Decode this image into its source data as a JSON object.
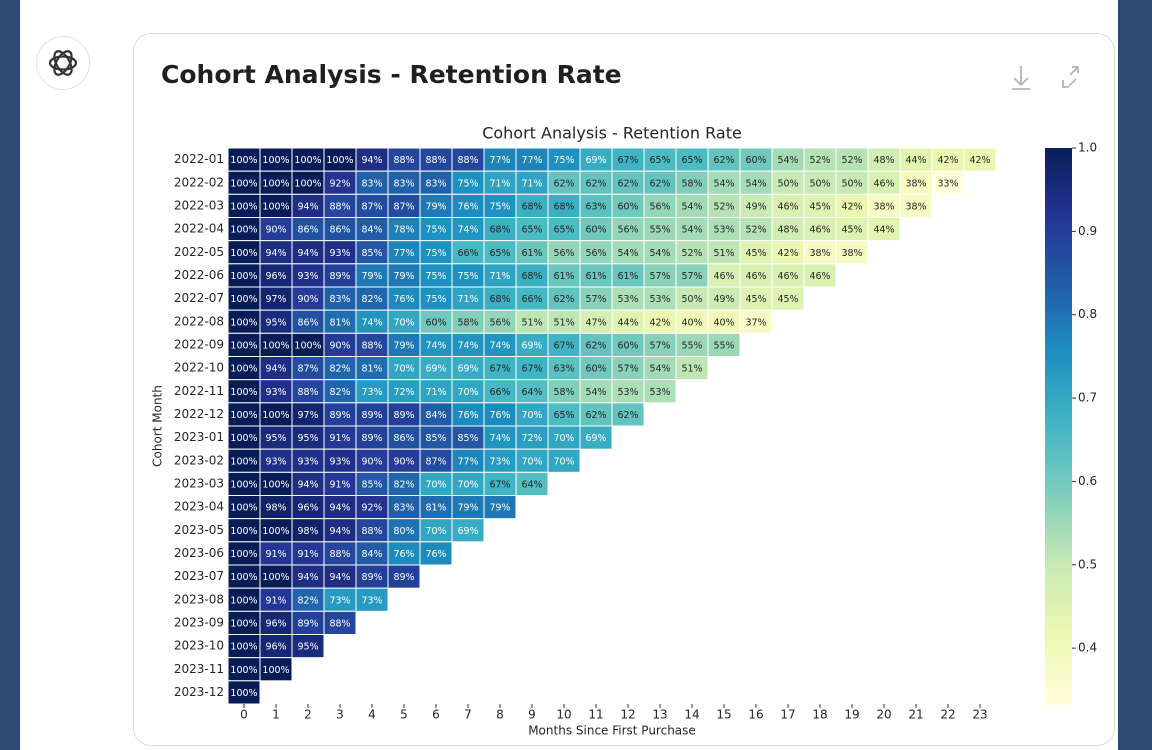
{
  "card_title": "Cohort Analysis - Retention Rate",
  "chart_data": {
    "type": "heatmap",
    "title": "Cohort Analysis - Retention Rate",
    "xlabel": "Months Since First Purchase",
    "ylabel": "Cohort Month",
    "x": [
      0,
      1,
      2,
      3,
      4,
      5,
      6,
      7,
      8,
      9,
      10,
      11,
      12,
      13,
      14,
      15,
      16,
      17,
      18,
      19,
      20,
      21,
      22,
      23
    ],
    "y": [
      "2022-01",
      "2022-02",
      "2022-03",
      "2022-04",
      "2022-05",
      "2022-06",
      "2022-07",
      "2022-08",
      "2022-09",
      "2022-10",
      "2022-11",
      "2022-12",
      "2023-01",
      "2023-02",
      "2023-03",
      "2023-04",
      "2023-05",
      "2023-06",
      "2023-07",
      "2023-08",
      "2023-09",
      "2023-10",
      "2023-11",
      "2023-12"
    ],
    "colormap": "YlGnBu",
    "clim": [
      0.333,
      1.0
    ],
    "cticks": [
      0.4,
      0.5,
      0.6,
      0.7,
      0.8,
      0.9,
      {
        "value": 1,
        "label": "1.0"
      }
    ],
    "values": [
      [
        1,
        1,
        1,
        1,
        0.94,
        0.88,
        0.88,
        0.88,
        0.77,
        0.77,
        0.75,
        0.69,
        0.67,
        0.65,
        0.65,
        0.62,
        0.6,
        0.54,
        0.52,
        0.52,
        0.48,
        0.44,
        0.42,
        0.42
      ],
      [
        1,
        1,
        1,
        0.92,
        0.83,
        0.83,
        0.83,
        0.75,
        0.71,
        0.71,
        0.62,
        0.62,
        0.62,
        0.62,
        0.58,
        0.54,
        0.54,
        0.5,
        0.5,
        0.5,
        0.46,
        0.38,
        0.33,
        null
      ],
      [
        1,
        1,
        0.94,
        0.88,
        0.87,
        0.87,
        0.79,
        0.76,
        0.75,
        0.68,
        0.68,
        0.63,
        0.6,
        0.56,
        0.54,
        0.52,
        0.49,
        0.46,
        0.45,
        0.42,
        0.38,
        0.38,
        null,
        null
      ],
      [
        1,
        0.9,
        0.86,
        0.86,
        0.84,
        0.78,
        0.75,
        0.74,
        0.68,
        0.65,
        0.65,
        0.6,
        0.56,
        0.55,
        0.54,
        0.53,
        0.52,
        0.48,
        0.46,
        0.45,
        0.44,
        null,
        null,
        null
      ],
      [
        1,
        0.94,
        0.94,
        0.93,
        0.85,
        0.77,
        0.75,
        0.66,
        0.65,
        0.61,
        0.56,
        0.56,
        0.54,
        0.54,
        0.52,
        0.51,
        0.45,
        0.42,
        0.38,
        0.38,
        null,
        null,
        null,
        null
      ],
      [
        1,
        0.96,
        0.93,
        0.89,
        0.79,
        0.79,
        0.75,
        0.75,
        0.71,
        0.68,
        0.61,
        0.61,
        0.61,
        0.57,
        0.57,
        0.46,
        0.46,
        0.46,
        0.46,
        null,
        null,
        null,
        null,
        null
      ],
      [
        1,
        0.97,
        0.9,
        0.83,
        0.82,
        0.76,
        0.75,
        0.71,
        0.68,
        0.66,
        0.62,
        0.57,
        0.53,
        0.53,
        0.5,
        0.49,
        0.45,
        0.45,
        null,
        null,
        null,
        null,
        null,
        null
      ],
      [
        1,
        0.95,
        0.86,
        0.81,
        0.74,
        0.7,
        0.6,
        0.58,
        0.56,
        0.51,
        0.51,
        0.47,
        0.44,
        0.42,
        0.4,
        0.4,
        0.37,
        null,
        null,
        null,
        null,
        null,
        null,
        null
      ],
      [
        1,
        1,
        1,
        0.9,
        0.88,
        0.79,
        0.74,
        0.74,
        0.74,
        0.69,
        0.67,
        0.62,
        0.6,
        0.57,
        0.55,
        0.55,
        null,
        null,
        null,
        null,
        null,
        null,
        null,
        null
      ],
      [
        1,
        0.94,
        0.87,
        0.82,
        0.81,
        0.7,
        0.69,
        0.69,
        0.67,
        0.67,
        0.63,
        0.6,
        0.57,
        0.54,
        0.51,
        null,
        null,
        null,
        null,
        null,
        null,
        null,
        null,
        null
      ],
      [
        1,
        0.93,
        0.88,
        0.82,
        0.73,
        0.72,
        0.71,
        0.7,
        0.66,
        0.64,
        0.58,
        0.54,
        0.53,
        0.53,
        null,
        null,
        null,
        null,
        null,
        null,
        null,
        null,
        null,
        null
      ],
      [
        1,
        1,
        0.97,
        0.89,
        0.89,
        0.89,
        0.84,
        0.76,
        0.76,
        0.7,
        0.65,
        0.62,
        0.62,
        null,
        null,
        null,
        null,
        null,
        null,
        null,
        null,
        null,
        null,
        null
      ],
      [
        1,
        0.95,
        0.95,
        0.91,
        0.89,
        0.86,
        0.85,
        0.85,
        0.74,
        0.72,
        0.7,
        0.69,
        null,
        null,
        null,
        null,
        null,
        null,
        null,
        null,
        null,
        null,
        null,
        null
      ],
      [
        1,
        0.93,
        0.93,
        0.93,
        0.9,
        0.9,
        0.87,
        0.77,
        0.73,
        0.7,
        0.7,
        null,
        null,
        null,
        null,
        null,
        null,
        null,
        null,
        null,
        null,
        null,
        null,
        null
      ],
      [
        1,
        1,
        0.94,
        0.91,
        0.85,
        0.82,
        0.7,
        0.7,
        0.67,
        0.64,
        null,
        null,
        null,
        null,
        null,
        null,
        null,
        null,
        null,
        null,
        null,
        null,
        null,
        null
      ],
      [
        1,
        0.98,
        0.96,
        0.94,
        0.92,
        0.83,
        0.81,
        0.79,
        0.79,
        null,
        null,
        null,
        null,
        null,
        null,
        null,
        null,
        null,
        null,
        null,
        null,
        null,
        null,
        null
      ],
      [
        1,
        1,
        0.98,
        0.94,
        0.88,
        0.8,
        0.7,
        0.69,
        null,
        null,
        null,
        null,
        null,
        null,
        null,
        null,
        null,
        null,
        null,
        null,
        null,
        null,
        null,
        null
      ],
      [
        1,
        0.91,
        0.91,
        0.88,
        0.84,
        0.76,
        0.76,
        null,
        null,
        null,
        null,
        null,
        null,
        null,
        null,
        null,
        null,
        null,
        null,
        null,
        null,
        null,
        null,
        null
      ],
      [
        1,
        1,
        0.94,
        0.94,
        0.89,
        0.89,
        null,
        null,
        null,
        null,
        null,
        null,
        null,
        null,
        null,
        null,
        null,
        null,
        null,
        null,
        null,
        null,
        null,
        null
      ],
      [
        1,
        0.91,
        0.82,
        0.73,
        0.73,
        null,
        null,
        null,
        null,
        null,
        null,
        null,
        null,
        null,
        null,
        null,
        null,
        null,
        null,
        null,
        null,
        null,
        null,
        null
      ],
      [
        1,
        0.96,
        0.89,
        0.88,
        null,
        null,
        null,
        null,
        null,
        null,
        null,
        null,
        null,
        null,
        null,
        null,
        null,
        null,
        null,
        null,
        null,
        null,
        null,
        null
      ],
      [
        1,
        0.96,
        0.95,
        null,
        null,
        null,
        null,
        null,
        null,
        null,
        null,
        null,
        null,
        null,
        null,
        null,
        null,
        null,
        null,
        null,
        null,
        null,
        null,
        null
      ],
      [
        1,
        1,
        null,
        null,
        null,
        null,
        null,
        null,
        null,
        null,
        null,
        null,
        null,
        null,
        null,
        null,
        null,
        null,
        null,
        null,
        null,
        null,
        null,
        null
      ],
      [
        1,
        null,
        null,
        null,
        null,
        null,
        null,
        null,
        null,
        null,
        null,
        null,
        null,
        null,
        null,
        null,
        null,
        null,
        null,
        null,
        null,
        null,
        null,
        null
      ]
    ],
    "value_labels": [
      [
        "100%",
        "100%",
        "100%",
        "100%",
        "94%",
        "88%",
        "88%",
        "88%",
        "77%",
        "77%",
        "75%",
        "69%",
        "67%",
        "65%",
        "65%",
        "62%",
        "60%",
        "54%",
        "52%",
        "52%",
        "48%",
        "44%",
        "42%",
        "42%"
      ],
      [
        "100%",
        "100%",
        "100%",
        "92%",
        "83%",
        "83%",
        "83%",
        "75%",
        "71%",
        "71%",
        "62%",
        "62%",
        "62%",
        "62%",
        "58%",
        "54%",
        "54%",
        "50%",
        "50%",
        "50%",
        "46%",
        "38%",
        "33%",
        null
      ],
      [
        "100%",
        "100%",
        "94%",
        "88%",
        "87%",
        "87%",
        "79%",
        "76%",
        "75%",
        "68%",
        "68%",
        "63%",
        "60%",
        "56%",
        "54%",
        "52%",
        "49%",
        "46%",
        "45%",
        "42%",
        "38%",
        "38%",
        null,
        null
      ],
      [
        "100%",
        "90%",
        "86%",
        "86%",
        "84%",
        "78%",
        "75%",
        "74%",
        "68%",
        "65%",
        "65%",
        "60%",
        "56%",
        "55%",
        "54%",
        "53%",
        "52%",
        "48%",
        "46%",
        "45%",
        "44%",
        null,
        null,
        null
      ],
      [
        "100%",
        "94%",
        "94%",
        "93%",
        "85%",
        "77%",
        "75%",
        "66%",
        "65%",
        "61%",
        "56%",
        "56%",
        "54%",
        "54%",
        "52%",
        "51%",
        "45%",
        "42%",
        "38%",
        "38%",
        null,
        null,
        null,
        null
      ],
      [
        "100%",
        "96%",
        "93%",
        "89%",
        "79%",
        "79%",
        "75%",
        "75%",
        "71%",
        "68%",
        "61%",
        "61%",
        "61%",
        "57%",
        "57%",
        "46%",
        "46%",
        "46%",
        "46%",
        null,
        null,
        null,
        null,
        null
      ],
      [
        "100%",
        "97%",
        "90%",
        "83%",
        "82%",
        "76%",
        "75%",
        "71%",
        "68%",
        "66%",
        "62%",
        "57%",
        "53%",
        "53%",
        "50%",
        "49%",
        "45%",
        "45%",
        null,
        null,
        null,
        null,
        null,
        null
      ],
      [
        "100%",
        "95%",
        "86%",
        "81%",
        "74%",
        "70%",
        "60%",
        "58%",
        "56%",
        "51%",
        "51%",
        "47%",
        "44%",
        "42%",
        "40%",
        "40%",
        "37%",
        null,
        null,
        null,
        null,
        null,
        null,
        null
      ],
      [
        "100%",
        "100%",
        "100%",
        "90%",
        "88%",
        "79%",
        "74%",
        "74%",
        "74%",
        "69%",
        "67%",
        "62%",
        "60%",
        "57%",
        "55%",
        "55%",
        null,
        null,
        null,
        null,
        null,
        null,
        null,
        null
      ],
      [
        "100%",
        "94%",
        "87%",
        "82%",
        "81%",
        "70%",
        "69%",
        "69%",
        "67%",
        "67%",
        "63%",
        "60%",
        "57%",
        "54%",
        "51%",
        null,
        null,
        null,
        null,
        null,
        null,
        null,
        null,
        null
      ],
      [
        "100%",
        "93%",
        "88%",
        "82%",
        "73%",
        "72%",
        "71%",
        "70%",
        "66%",
        "64%",
        "58%",
        "54%",
        "53%",
        "53%",
        null,
        null,
        null,
        null,
        null,
        null,
        null,
        null,
        null,
        null
      ],
      [
        "100%",
        "100%",
        "97%",
        "89%",
        "89%",
        "89%",
        "84%",
        "76%",
        "76%",
        "70%",
        "65%",
        "62%",
        "62%",
        null,
        null,
        null,
        null,
        null,
        null,
        null,
        null,
        null,
        null,
        null
      ],
      [
        "100%",
        "95%",
        "95%",
        "91%",
        "89%",
        "86%",
        "85%",
        "85%",
        "74%",
        "72%",
        "70%",
        "69%",
        null,
        null,
        null,
        null,
        null,
        null,
        null,
        null,
        null,
        null,
        null,
        null
      ],
      [
        "100%",
        "93%",
        "93%",
        "93%",
        "90%",
        "90%",
        "87%",
        "77%",
        "73%",
        "70%",
        "70%",
        null,
        null,
        null,
        null,
        null,
        null,
        null,
        null,
        null,
        null,
        null,
        null,
        null
      ],
      [
        "100%",
        "100%",
        "94%",
        "91%",
        "85%",
        "82%",
        "70%",
        "70%",
        "67%",
        "64%",
        null,
        null,
        null,
        null,
        null,
        null,
        null,
        null,
        null,
        null,
        null,
        null,
        null,
        null
      ],
      [
        "100%",
        "98%",
        "96%",
        "94%",
        "92%",
        "83%",
        "81%",
        "79%",
        "79%",
        null,
        null,
        null,
        null,
        null,
        null,
        null,
        null,
        null,
        null,
        null,
        null,
        null,
        null,
        null
      ],
      [
        "100%",
        "100%",
        "98%",
        "94%",
        "88%",
        "80%",
        "70%",
        "69%",
        null,
        null,
        null,
        null,
        null,
        null,
        null,
        null,
        null,
        null,
        null,
        null,
        null,
        null,
        null,
        null
      ],
      [
        "100%",
        "91%",
        "91%",
        "88%",
        "84%",
        "76%",
        "76%",
        null,
        null,
        null,
        null,
        null,
        null,
        null,
        null,
        null,
        null,
        null,
        null,
        null,
        null,
        null,
        null,
        null
      ],
      [
        "100%",
        "100%",
        "94%",
        "94%",
        "89%",
        "89%",
        null,
        null,
        null,
        null,
        null,
        null,
        null,
        null,
        null,
        null,
        null,
        null,
        null,
        null,
        null,
        null,
        null,
        null
      ],
      [
        "100%",
        "91%",
        "82%",
        "73%",
        "73%",
        null,
        null,
        null,
        null,
        null,
        null,
        null,
        null,
        null,
        null,
        null,
        null,
        null,
        null,
        null,
        null,
        null,
        null,
        null
      ],
      [
        "100%",
        "96%",
        "89%",
        "88%",
        null,
        null,
        null,
        null,
        null,
        null,
        null,
        null,
        null,
        null,
        null,
        null,
        null,
        null,
        null,
        null,
        null,
        null,
        null,
        null
      ],
      [
        "100%",
        "96%",
        "95%",
        null,
        null,
        null,
        null,
        null,
        null,
        null,
        null,
        null,
        null,
        null,
        null,
        null,
        null,
        null,
        null,
        null,
        null,
        null,
        null,
        null
      ],
      [
        "100%",
        "100%",
        null,
        null,
        null,
        null,
        null,
        null,
        null,
        null,
        null,
        null,
        null,
        null,
        null,
        null,
        null,
        null,
        null,
        null,
        null,
        null,
        null,
        null
      ],
      [
        "100%",
        null,
        null,
        null,
        null,
        null,
        null,
        null,
        null,
        null,
        null,
        null,
        null,
        null,
        null,
        null,
        null,
        null,
        null,
        null,
        null,
        null,
        null,
        null
      ]
    ]
  }
}
